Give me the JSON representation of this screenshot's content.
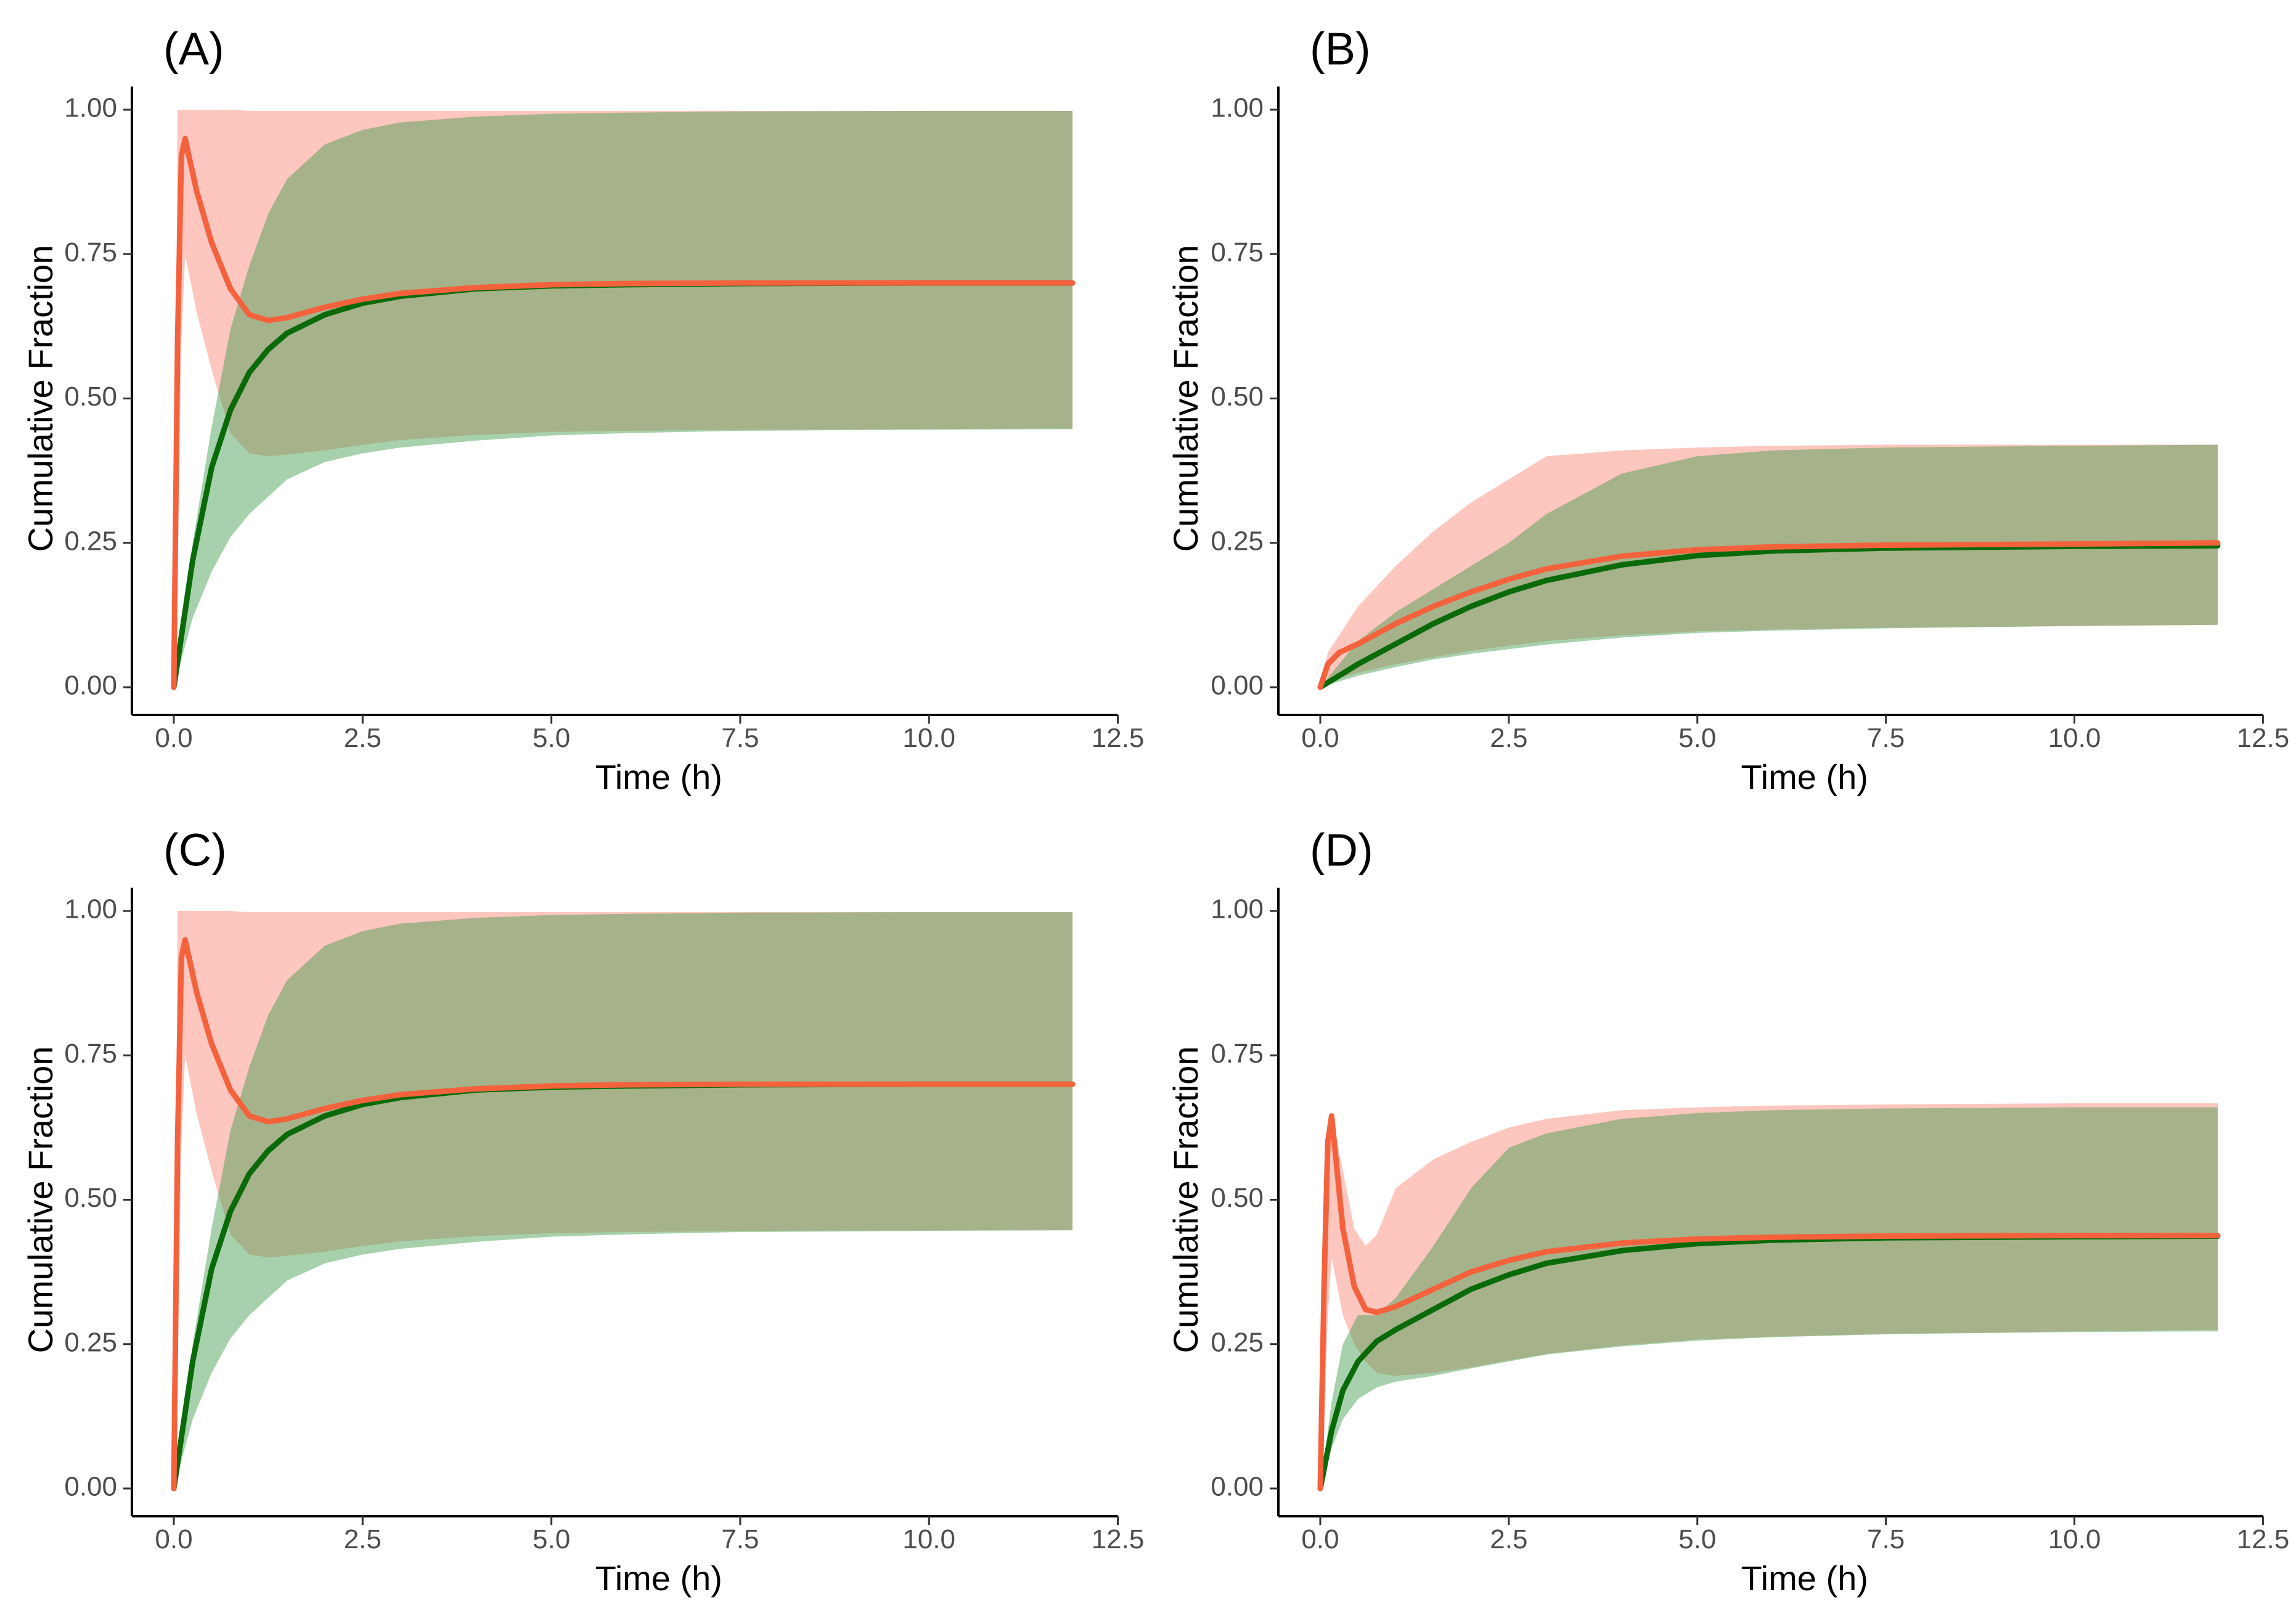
{
  "colors": {
    "red_line": "#f4623d",
    "green_line": "#0a6a0a",
    "red_band": "#fa8072",
    "green_band": "#3c9a46",
    "axis": "#000000",
    "tick_text": "#4d4d4d"
  },
  "chart_data": [
    {
      "type": "area",
      "panel": "(A)",
      "xlabel": "Time (h)",
      "ylabel": "Cumulative Fraction",
      "xlim": [
        -0.5,
        12.5
      ],
      "ylim": [
        0,
        1.04
      ],
      "xticks": [
        0,
        2.5,
        5,
        7.5,
        10,
        12.5
      ],
      "xtick_labels": [
        "0.0",
        "2.5",
        "5.0",
        "7.5",
        "10.0",
        "12.5"
      ],
      "yticks": [
        0,
        0.25,
        0.5,
        0.75,
        1
      ],
      "ytick_labels": [
        "0.00",
        "0.25",
        "0.50",
        "0.75",
        "1.00"
      ],
      "series": [
        {
          "name": "red",
          "x": [
            0,
            0.05,
            0.1,
            0.15,
            0.3,
            0.5,
            0.75,
            1,
            1.25,
            1.5,
            2,
            2.5,
            3,
            4,
            5,
            6,
            7.5,
            10,
            11.9
          ],
          "median": [
            0,
            0.6,
            0.92,
            0.95,
            0.86,
            0.77,
            0.69,
            0.645,
            0.635,
            0.64,
            0.658,
            0.672,
            0.682,
            0.692,
            0.697,
            0.699,
            0.7,
            0.7,
            0.7
          ],
          "lower": [
            0,
            0.2,
            0.6,
            0.75,
            0.65,
            0.55,
            0.44,
            0.405,
            0.4,
            0.403,
            0.41,
            0.42,
            0.428,
            0.437,
            0.442,
            0.444,
            0.446,
            0.447,
            0.448
          ],
          "upper": [
            0,
            1,
            1,
            1,
            1,
            1,
            1,
            0.998,
            0.998,
            0.998,
            0.998,
            0.998,
            0.998,
            0.998,
            0.998,
            0.998,
            0.998,
            0.998,
            0.998
          ]
        },
        {
          "name": "green",
          "x": [
            0,
            0.25,
            0.5,
            0.75,
            1,
            1.25,
            1.5,
            2,
            2.5,
            3,
            4,
            5,
            6,
            7.5,
            10,
            11.9
          ],
          "median": [
            0,
            0.22,
            0.38,
            0.48,
            0.545,
            0.585,
            0.613,
            0.645,
            0.665,
            0.677,
            0.69,
            0.695,
            0.697,
            0.699,
            0.7,
            0.7
          ],
          "lower": [
            0,
            0.12,
            0.2,
            0.26,
            0.3,
            0.33,
            0.36,
            0.39,
            0.405,
            0.415,
            0.427,
            0.436,
            0.44,
            0.444,
            0.446,
            0.447
          ],
          "upper": [
            0,
            0.25,
            0.45,
            0.62,
            0.73,
            0.82,
            0.88,
            0.94,
            0.965,
            0.978,
            0.988,
            0.993,
            0.995,
            0.997,
            0.998,
            0.998
          ]
        }
      ]
    },
    {
      "type": "area",
      "panel": "(B)",
      "xlabel": "Time (h)",
      "ylabel": "Cumulative Fraction",
      "xlim": [
        -0.5,
        12.5
      ],
      "ylim": [
        0,
        1.04
      ],
      "xticks": [
        0,
        2.5,
        5,
        7.5,
        10,
        12.5
      ],
      "xtick_labels": [
        "0.0",
        "2.5",
        "5.0",
        "7.5",
        "10.0",
        "12.5"
      ],
      "yticks": [
        0,
        0.25,
        0.5,
        0.75,
        1
      ],
      "ytick_labels": [
        "0.00",
        "0.25",
        "0.50",
        "0.75",
        "1.00"
      ],
      "series": [
        {
          "name": "red",
          "x": [
            0,
            0.1,
            0.25,
            0.5,
            1,
            1.5,
            2,
            2.5,
            3,
            4,
            5,
            6,
            7.5,
            10,
            11.9
          ],
          "median": [
            0,
            0.04,
            0.06,
            0.075,
            0.11,
            0.14,
            0.165,
            0.187,
            0.205,
            0.227,
            0.238,
            0.243,
            0.246,
            0.248,
            0.25
          ],
          "lower": [
            0,
            0.005,
            0.015,
            0.025,
            0.04,
            0.052,
            0.063,
            0.072,
            0.08,
            0.09,
            0.097,
            0.1,
            0.103,
            0.106,
            0.108
          ],
          "upper": [
            0,
            0.06,
            0.09,
            0.14,
            0.21,
            0.27,
            0.32,
            0.36,
            0.4,
            0.41,
            0.415,
            0.418,
            0.42,
            0.42,
            0.42
          ]
        },
        {
          "name": "green",
          "x": [
            0,
            0.25,
            0.5,
            1,
            1.5,
            2,
            2.5,
            3,
            4,
            5,
            6,
            7.5,
            10,
            11.9
          ],
          "median": [
            0,
            0.02,
            0.04,
            0.075,
            0.11,
            0.14,
            0.165,
            0.185,
            0.212,
            0.228,
            0.236,
            0.241,
            0.244,
            0.245
          ],
          "lower": [
            0,
            0.01,
            0.02,
            0.035,
            0.048,
            0.058,
            0.066,
            0.074,
            0.086,
            0.094,
            0.098,
            0.102,
            0.106,
            0.108
          ],
          "upper": [
            0,
            0.04,
            0.08,
            0.13,
            0.17,
            0.21,
            0.25,
            0.3,
            0.37,
            0.4,
            0.41,
            0.415,
            0.418,
            0.42
          ]
        }
      ]
    },
    {
      "type": "area",
      "panel": "(C)",
      "xlabel": "Time (h)",
      "ylabel": "Cumulative Fraction",
      "xlim": [
        -0.5,
        12.5
      ],
      "ylim": [
        0,
        1.04
      ],
      "xticks": [
        0,
        2.5,
        5,
        7.5,
        10,
        12.5
      ],
      "xtick_labels": [
        "0.0",
        "2.5",
        "5.0",
        "7.5",
        "10.0",
        "12.5"
      ],
      "yticks": [
        0,
        0.25,
        0.5,
        0.75,
        1
      ],
      "ytick_labels": [
        "0.00",
        "0.25",
        "0.50",
        "0.75",
        "1.00"
      ],
      "series": [
        {
          "name": "red",
          "x": [
            0,
            0.05,
            0.1,
            0.15,
            0.3,
            0.5,
            0.75,
            1,
            1.25,
            1.5,
            2,
            2.5,
            3,
            4,
            5,
            6,
            7.5,
            10,
            11.9
          ],
          "median": [
            0,
            0.6,
            0.92,
            0.95,
            0.86,
            0.77,
            0.69,
            0.645,
            0.635,
            0.64,
            0.658,
            0.672,
            0.682,
            0.692,
            0.697,
            0.699,
            0.7,
            0.7,
            0.7
          ],
          "lower": [
            0,
            0.2,
            0.6,
            0.75,
            0.65,
            0.55,
            0.44,
            0.405,
            0.4,
            0.403,
            0.41,
            0.42,
            0.428,
            0.437,
            0.442,
            0.444,
            0.446,
            0.447,
            0.448
          ],
          "upper": [
            0,
            1,
            1,
            1,
            1,
            1,
            1,
            0.998,
            0.998,
            0.998,
            0.998,
            0.998,
            0.998,
            0.998,
            0.998,
            0.998,
            0.998,
            0.998,
            0.998
          ]
        },
        {
          "name": "green",
          "x": [
            0,
            0.25,
            0.5,
            0.75,
            1,
            1.25,
            1.5,
            2,
            2.5,
            3,
            4,
            5,
            6,
            7.5,
            10,
            11.9
          ],
          "median": [
            0,
            0.22,
            0.38,
            0.48,
            0.545,
            0.585,
            0.613,
            0.645,
            0.665,
            0.677,
            0.69,
            0.695,
            0.697,
            0.699,
            0.7,
            0.7
          ],
          "lower": [
            0,
            0.12,
            0.2,
            0.26,
            0.3,
            0.33,
            0.36,
            0.39,
            0.405,
            0.415,
            0.427,
            0.436,
            0.44,
            0.444,
            0.446,
            0.447
          ],
          "upper": [
            0,
            0.25,
            0.45,
            0.62,
            0.73,
            0.82,
            0.88,
            0.94,
            0.965,
            0.978,
            0.988,
            0.993,
            0.995,
            0.997,
            0.998,
            0.998
          ]
        }
      ]
    },
    {
      "type": "area",
      "panel": "(D)",
      "xlabel": "Time (h)",
      "ylabel": "Cumulative Fraction",
      "xlim": [
        -0.5,
        12.5
      ],
      "ylim": [
        0,
        1.04
      ],
      "xticks": [
        0,
        2.5,
        5,
        7.5,
        10,
        12.5
      ],
      "xtick_labels": [
        "0.0",
        "2.5",
        "5.0",
        "7.5",
        "10.0",
        "12.5"
      ],
      "yticks": [
        0,
        0.25,
        0.5,
        0.75,
        1
      ],
      "ytick_labels": [
        "0.00",
        "0.25",
        "0.50",
        "0.75",
        "1.00"
      ],
      "series": [
        {
          "name": "red",
          "x": [
            0,
            0.05,
            0.1,
            0.15,
            0.3,
            0.45,
            0.6,
            0.75,
            1,
            1.5,
            2,
            2.5,
            3,
            4,
            5,
            6,
            7.5,
            10,
            11.9
          ],
          "median": [
            0,
            0.35,
            0.6,
            0.645,
            0.45,
            0.35,
            0.31,
            0.305,
            0.315,
            0.345,
            0.375,
            0.395,
            0.41,
            0.425,
            0.432,
            0.435,
            0.437,
            0.438,
            0.438
          ],
          "lower": [
            0,
            0.1,
            0.3,
            0.4,
            0.3,
            0.25,
            0.22,
            0.2,
            0.195,
            0.2,
            0.21,
            0.222,
            0.233,
            0.248,
            0.258,
            0.263,
            0.268,
            0.272,
            0.275
          ],
          "upper": [
            0,
            0.4,
            0.6,
            0.65,
            0.55,
            0.45,
            0.42,
            0.44,
            0.52,
            0.57,
            0.6,
            0.625,
            0.64,
            0.655,
            0.66,
            0.663,
            0.665,
            0.667,
            0.667
          ]
        },
        {
          "name": "green",
          "x": [
            0,
            0.15,
            0.3,
            0.5,
            0.75,
            1,
            1.5,
            2,
            2.5,
            3,
            4,
            5,
            6,
            7.5,
            10,
            11.9
          ],
          "median": [
            0,
            0.1,
            0.17,
            0.22,
            0.255,
            0.275,
            0.31,
            0.345,
            0.37,
            0.39,
            0.412,
            0.424,
            0.43,
            0.434,
            0.436,
            0.437
          ],
          "lower": [
            0,
            0.07,
            0.12,
            0.155,
            0.175,
            0.185,
            0.195,
            0.208,
            0.22,
            0.232,
            0.246,
            0.256,
            0.262,
            0.267,
            0.271,
            0.272
          ],
          "upper": [
            0,
            0.15,
            0.25,
            0.3,
            0.3,
            0.33,
            0.42,
            0.52,
            0.59,
            0.615,
            0.64,
            0.65,
            0.655,
            0.658,
            0.66,
            0.66
          ]
        }
      ]
    }
  ]
}
